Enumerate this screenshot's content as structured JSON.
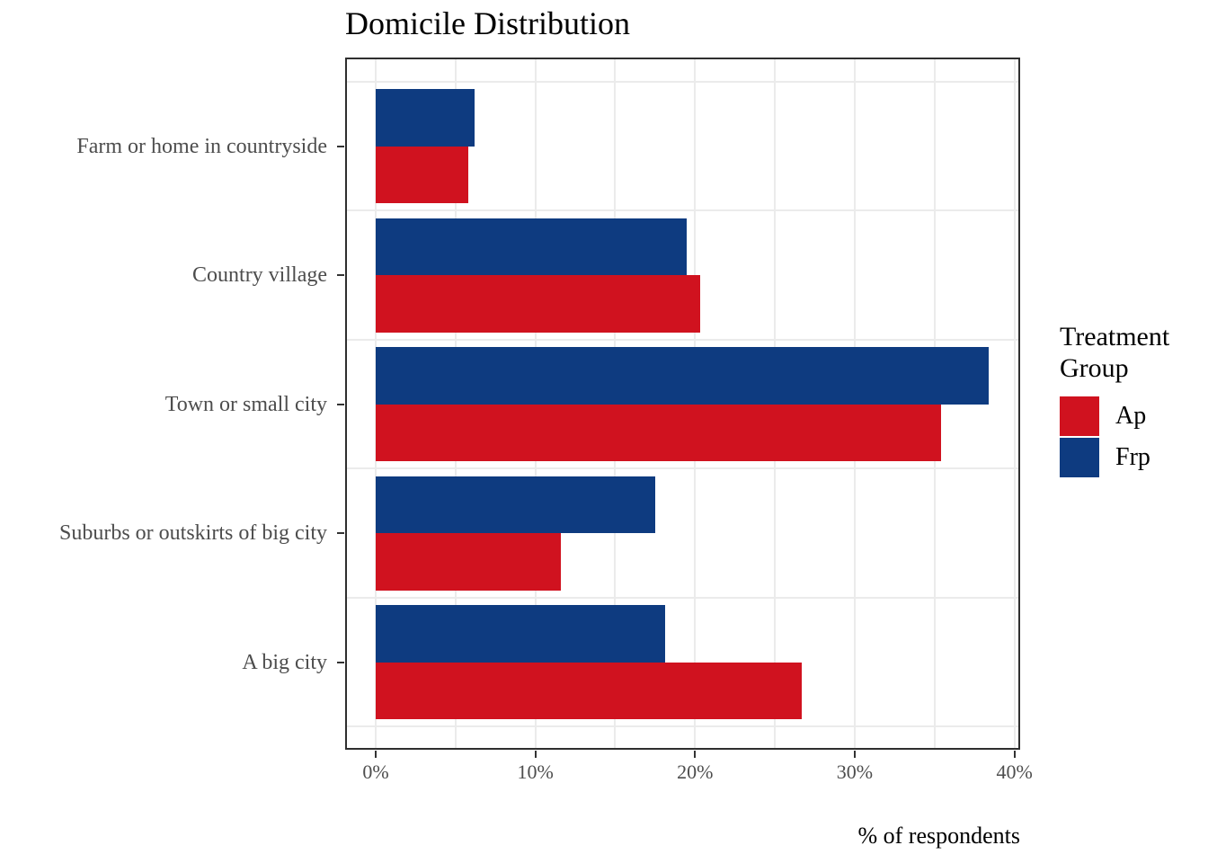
{
  "chart_data": {
    "type": "bar",
    "orientation": "horizontal",
    "title": "Domicile Distribution",
    "xlabel": "% of respondents",
    "ylabel": "",
    "legend_title": "Treatment Group",
    "legend_position": "right",
    "categories": [
      "Farm or home in countryside",
      "Country village",
      "Town or small city",
      "Suburbs or outskirts of big city",
      "A big city"
    ],
    "series": [
      {
        "name": "Ap",
        "color": "#d0121f",
        "values": [
          5.8,
          20.3,
          35.4,
          11.6,
          26.7
        ]
      },
      {
        "name": "Frp",
        "color": "#0e3b80",
        "values": [
          6.2,
          19.5,
          38.4,
          17.5,
          18.1
        ]
      }
    ],
    "x_ticks": [
      {
        "value": 0,
        "label": "0%"
      },
      {
        "value": 10,
        "label": "10%"
      },
      {
        "value": 20,
        "label": "20%"
      },
      {
        "value": 30,
        "label": "30%"
      },
      {
        "value": 40,
        "label": "40%"
      }
    ],
    "x_minor_ticks": [
      5,
      15,
      25,
      35
    ],
    "xlim": [
      0,
      40
    ],
    "grid": true,
    "colors": {
      "grid": "#ebebeb",
      "panel_border": "#2f2f2f",
      "tick": "#333333",
      "axis_text": "#4d4d4d",
      "text": "#000000",
      "background": "#ffffff"
    }
  }
}
